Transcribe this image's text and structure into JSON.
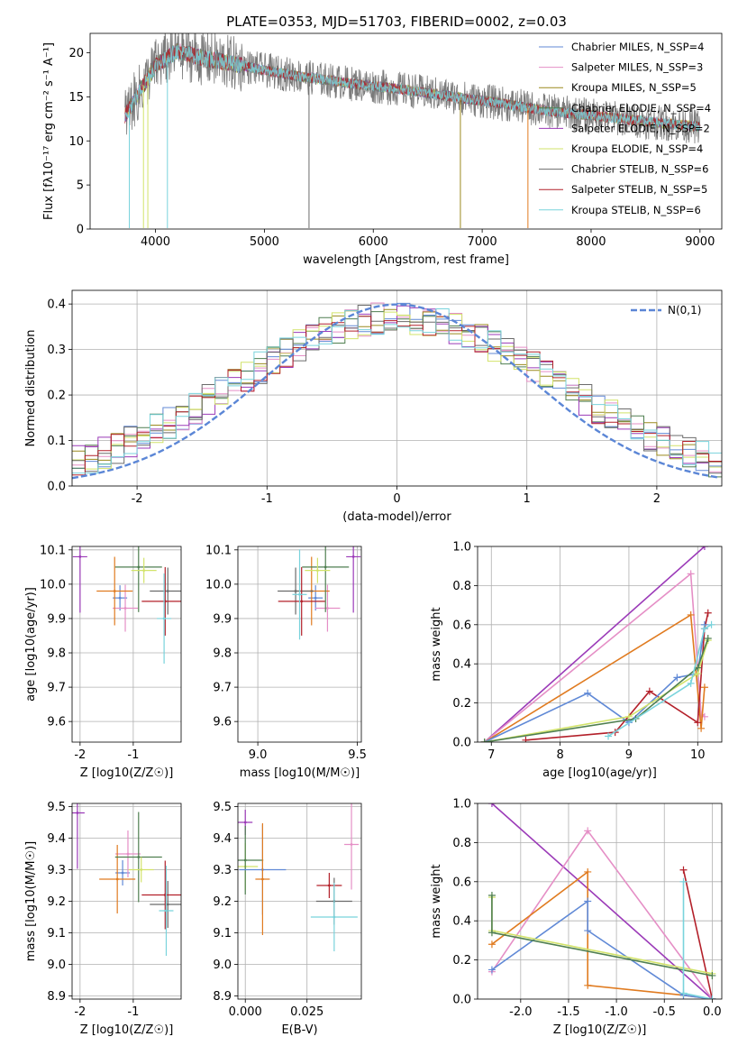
{
  "title": "PLATE=0353, MJD=51703, FIBERID=0002, z=0.03",
  "colors": {
    "c0": "#6089d6",
    "c1": "#e58fc6",
    "c2": "#9a8a1e",
    "c3": "#4f7f50",
    "c4": "#9b3ab8",
    "c5": "#d2e36a",
    "c6": "#6b6b6b",
    "c7": "#b3202a",
    "c8": "#79d3dc",
    "orange": "#e07b20",
    "green": "#3f8f3f",
    "gray": "#7f7f7f",
    "blue": "#5b7fd1"
  },
  "chart_data": [
    {
      "type": "line",
      "title": "PLATE=0353, MJD=51703, FIBERID=0002, z=0.03",
      "xlabel": "wavelength [Angstrom, rest frame]",
      "ylabel": "Flux [fλ10⁻¹⁷ erg cm⁻² s⁻¹ A⁻¹]",
      "xlim": [
        3400,
        9200
      ],
      "ylim": [
        0,
        22.2
      ],
      "xticks": [
        4000,
        5000,
        6000,
        7000,
        8000,
        9000
      ],
      "yticks": [
        0,
        5,
        10,
        15,
        20
      ],
      "legend": [
        "Chabrier MILES, N_SSP=4",
        "Salpeter MILES, N_SSP=3",
        "Kroupa MILES, N_SSP=5",
        "Chabrier ELODIE, N_SSP=4",
        "Salpeter ELODIE, N_SSP=2",
        "Kroupa ELODIE, N_SSP=4",
        "Chabrier STELIB, N_SSP=6",
        "Salpeter STELIB, N_SSP=5",
        "Kroupa STELIB, N_SSP=6"
      ],
      "legend_placement": "top-right",
      "continuum": {
        "x": [
          3700,
          3850,
          4000,
          4200,
          4400,
          4700,
          5000,
          5400,
          5800,
          6300,
          6800,
          7200,
          7600,
          8000,
          8500,
          9000
        ],
        "y": [
          12.5,
          15.5,
          18.5,
          20.2,
          19.5,
          18.8,
          18.0,
          17.2,
          16.5,
          15.8,
          14.9,
          14.2,
          13.4,
          12.9,
          12.2,
          11.6
        ]
      }
    },
    {
      "type": "histogram",
      "xlabel": "(data-model)/error",
      "ylabel": "Normed distribution",
      "xlim": [
        -2.5,
        2.5
      ],
      "ylim": [
        0,
        0.43
      ],
      "xticks": [
        -2,
        -1,
        0,
        1,
        2
      ],
      "yticks": [
        0.0,
        0.1,
        0.2,
        0.3,
        0.4
      ],
      "legend": [
        "N(0,1)"
      ],
      "legend_placement": "top-right",
      "gaussian": {
        "mu": 0,
        "sigma": 1
      }
    },
    {
      "type": "scatter",
      "panel": "Z-age",
      "xlabel": "Z [log10(Z/Z☉)]",
      "ylabel": "age  [log10(age/yr)]",
      "xlim": [
        -2.15,
        -0.1
      ],
      "ylim": [
        9.54,
        10.11
      ],
      "xticks": [
        -2,
        -1
      ],
      "yticks": [
        9.6,
        9.7,
        9.8,
        9.9,
        10.0,
        10.1
      ],
      "points": [
        {
          "x": -1.25,
          "y": 9.96,
          "color": "c0"
        },
        {
          "x": -1.15,
          "y": 9.93,
          "color": "c1"
        },
        {
          "x": -1.35,
          "y": 9.98,
          "color": "orange"
        },
        {
          "x": -0.9,
          "y": 10.05,
          "color": "c3"
        },
        {
          "x": -2.0,
          "y": 10.08,
          "color": "c4"
        },
        {
          "x": -0.8,
          "y": 10.04,
          "color": "c5"
        },
        {
          "x": -0.35,
          "y": 9.98,
          "color": "c6"
        },
        {
          "x": -0.4,
          "y": 9.95,
          "color": "c7"
        },
        {
          "x": -0.42,
          "y": 9.9,
          "color": "c8"
        }
      ]
    },
    {
      "type": "scatter",
      "panel": "mass-age",
      "xlabel": "mass [log10(M/M☉)]",
      "ylabel": "",
      "xlim": [
        8.9,
        9.52
      ],
      "ylim": [
        9.54,
        10.11
      ],
      "xticks": [
        9.0,
        9.5
      ],
      "yticks": [
        9.6,
        9.7,
        9.8,
        9.9,
        10.0,
        10.1
      ],
      "points": [
        {
          "x": 9.29,
          "y": 9.96,
          "color": "c0"
        },
        {
          "x": 9.35,
          "y": 9.93,
          "color": "c1"
        },
        {
          "x": 9.27,
          "y": 9.98,
          "color": "orange"
        },
        {
          "x": 9.34,
          "y": 10.05,
          "color": "c3"
        },
        {
          "x": 9.48,
          "y": 10.08,
          "color": "c4"
        },
        {
          "x": 9.3,
          "y": 10.04,
          "color": "c5"
        },
        {
          "x": 9.19,
          "y": 9.98,
          "color": "c6"
        },
        {
          "x": 9.22,
          "y": 9.95,
          "color": "c7"
        },
        {
          "x": 9.21,
          "y": 9.97,
          "color": "c8"
        }
      ]
    },
    {
      "type": "line",
      "panel": "age-mass-weight",
      "xlabel": "age  [log10(age/yr)]",
      "ylabel": "mass weight",
      "xlim": [
        6.8,
        10.35
      ],
      "ylim": [
        0,
        1.0
      ],
      "xticks": [
        7,
        8,
        9,
        10
      ],
      "yticks": [
        0.0,
        0.2,
        0.4,
        0.6,
        0.8,
        1.0
      ],
      "series": [
        {
          "color": "c4",
          "x": [
            6.9,
            10.1
          ],
          "y": [
            0.0,
            1.0
          ]
        },
        {
          "color": "c1",
          "x": [
            6.9,
            9.9,
            10.05,
            10.1
          ],
          "y": [
            0.0,
            0.86,
            0.14,
            0.13
          ]
        },
        {
          "color": "orange",
          "x": [
            6.9,
            9.9,
            10.05,
            10.1
          ],
          "y": [
            0.0,
            0.65,
            0.07,
            0.28
          ]
        },
        {
          "color": "c7",
          "x": [
            7.5,
            8.8,
            9.3,
            10.0,
            10.1,
            10.15
          ],
          "y": [
            0.01,
            0.05,
            0.26,
            0.1,
            0.58,
            0.66
          ]
        },
        {
          "color": "c0",
          "x": [
            6.9,
            8.4,
            9.0,
            9.7,
            10.0,
            10.1
          ],
          "y": [
            0.0,
            0.25,
            0.1,
            0.33,
            0.35,
            0.6
          ]
        },
        {
          "color": "c5",
          "x": [
            6.9,
            9.0,
            10.0,
            10.15
          ],
          "y": [
            0.0,
            0.13,
            0.35,
            0.52
          ]
        },
        {
          "color": "c3",
          "x": [
            6.9,
            9.1,
            10.0,
            10.15
          ],
          "y": [
            0.0,
            0.12,
            0.38,
            0.53
          ]
        },
        {
          "color": "c8",
          "x": [
            8.7,
            9.9,
            10.1,
            10.2
          ],
          "y": [
            0.03,
            0.3,
            0.58,
            0.6
          ]
        }
      ]
    },
    {
      "type": "scatter",
      "panel": "Z-mass",
      "xlabel": "Z [log10(Z/Z☉)]",
      "ylabel": "mass [log10(M/M☉)]",
      "xlim": [
        -2.15,
        -0.1
      ],
      "ylim": [
        8.89,
        9.51
      ],
      "xticks": [
        -2,
        -1
      ],
      "yticks": [
        8.9,
        9.0,
        9.1,
        9.2,
        9.3,
        9.4,
        9.5
      ],
      "points": [
        {
          "x": -1.2,
          "y": 9.29,
          "color": "c0"
        },
        {
          "x": -1.1,
          "y": 9.35,
          "color": "c1"
        },
        {
          "x": -1.3,
          "y": 9.27,
          "color": "orange"
        },
        {
          "x": -0.9,
          "y": 9.34,
          "color": "c3"
        },
        {
          "x": -2.05,
          "y": 9.48,
          "color": "c4"
        },
        {
          "x": -0.85,
          "y": 9.3,
          "color": "c5"
        },
        {
          "x": -0.35,
          "y": 9.19,
          "color": "c6"
        },
        {
          "x": -0.4,
          "y": 9.22,
          "color": "c7"
        },
        {
          "x": -0.38,
          "y": 9.17,
          "color": "c8"
        }
      ]
    },
    {
      "type": "scatter",
      "panel": "EBV-mass",
      "xlabel": "E(B-V)",
      "ylabel": "",
      "xlim": [
        -0.003,
        0.047
      ],
      "ylim": [
        8.89,
        9.51
      ],
      "xticks": [
        0.0,
        0.025
      ],
      "xticklabels": [
        "0.000",
        "0.025"
      ],
      "yticks": [
        8.9,
        9.0,
        9.1,
        9.2,
        9.3,
        9.4,
        9.5
      ],
      "points": [
        {
          "x": 0.0,
          "y": 9.45,
          "color": "c4"
        },
        {
          "x": 0.0,
          "y": 9.31,
          "color": "c5"
        },
        {
          "x": 0.0,
          "y": 9.33,
          "color": "c3"
        },
        {
          "x": 0.007,
          "y": 9.3,
          "color": "c0"
        },
        {
          "x": 0.007,
          "y": 9.27,
          "color": "orange"
        },
        {
          "x": 0.034,
          "y": 9.25,
          "color": "c7"
        },
        {
          "x": 0.036,
          "y": 9.2,
          "color": "c6"
        },
        {
          "x": 0.036,
          "y": 9.15,
          "color": "c8"
        },
        {
          "x": 0.043,
          "y": 9.38,
          "color": "c1"
        }
      ]
    },
    {
      "type": "line",
      "panel": "Z-mass-weight",
      "xlabel": "Z [log10(Z/Z☉)]",
      "ylabel": "mass weight",
      "xlim": [
        -2.45,
        0.1
      ],
      "ylim": [
        0,
        1.0
      ],
      "xticks": [
        -2.0,
        -1.5,
        -1.0,
        -0.5,
        0.0
      ],
      "yticks": [
        0.0,
        0.2,
        0.4,
        0.6,
        0.8,
        1.0
      ],
      "series": [
        {
          "color": "c4",
          "x": [
            -2.3,
            0.0
          ],
          "y": [
            1.0,
            0.0
          ]
        },
        {
          "color": "c1",
          "x": [
            -2.3,
            -1.3,
            0.0
          ],
          "y": [
            0.14,
            0.86,
            0.0
          ]
        },
        {
          "color": "orange",
          "x": [
            -2.3,
            -1.3,
            -1.3,
            -0.3,
            0.0
          ],
          "y": [
            0.28,
            0.65,
            0.07,
            0.02,
            0.0
          ]
        },
        {
          "color": "c7",
          "x": [
            -0.3,
            0.0
          ],
          "y": [
            0.66,
            0.0
          ]
        },
        {
          "color": "c0",
          "x": [
            -2.3,
            -1.3,
            -1.3,
            -0.3,
            0.0
          ],
          "y": [
            0.15,
            0.5,
            0.35,
            0.02,
            0.0
          ]
        },
        {
          "color": "c5",
          "x": [
            -2.3,
            -2.3,
            0.0
          ],
          "y": [
            0.52,
            0.35,
            0.13
          ]
        },
        {
          "color": "c3",
          "x": [
            -2.3,
            -2.3,
            0.0
          ],
          "y": [
            0.53,
            0.34,
            0.12
          ]
        },
        {
          "color": "c8",
          "x": [
            -0.3,
            -0.3,
            0.0
          ],
          "y": [
            0.6,
            0.03,
            0.0
          ]
        }
      ]
    }
  ]
}
